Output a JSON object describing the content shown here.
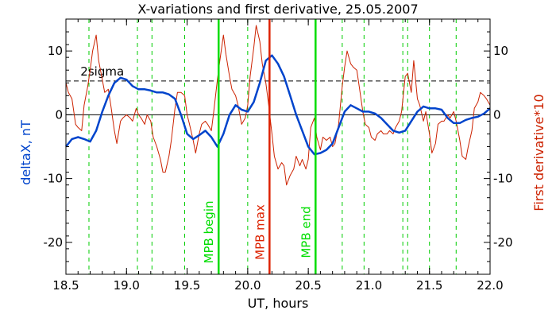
{
  "chart_data": {
    "type": "line",
    "title": "X-variations and first derivative, 25.05.2007",
    "xlabel": "UT, hours",
    "ylabel_left": "deltaX, nT",
    "ylabel_right": "First derivative*10",
    "xlim": [
      18.5,
      22.0
    ],
    "ylim": [
      -25,
      15
    ],
    "xticks": [
      18.5,
      19.0,
      19.5,
      20.0,
      20.5,
      21.0,
      21.5,
      22.0
    ],
    "xtick_labels": [
      "18.5",
      "19.0",
      "19.5",
      "20.0",
      "20.5",
      "21.0",
      "21.5",
      "22.0"
    ],
    "yticks": [
      -20,
      -10,
      0,
      10
    ],
    "ytick_labels": [
      "-20",
      "-10",
      "0",
      "10"
    ],
    "threshold": {
      "label": "2sigma",
      "value": 5.3
    },
    "zero_line": 0,
    "dashed_markers_x": [
      18.69,
      19.09,
      19.21,
      19.48,
      20.0,
      20.78,
      20.96,
      21.28,
      21.32,
      21.5,
      21.72
    ],
    "events": [
      {
        "label": "MPB begin",
        "x": 19.76,
        "color": "#00dd00"
      },
      {
        "label": "MPB max",
        "x": 20.18,
        "color": "#dd2200"
      },
      {
        "label": "MPB end",
        "x": 20.56,
        "color": "#00dd00"
      }
    ],
    "colors": {
      "deltaX": "#0044cc",
      "derivative": "#cc2200",
      "marker": "#00cc00"
    },
    "series": [
      {
        "name": "deltaX, nT",
        "x": [
          18.5,
          18.55,
          18.6,
          18.65,
          18.7,
          18.75,
          18.8,
          18.85,
          18.9,
          18.95,
          19.0,
          19.05,
          19.1,
          19.15,
          19.2,
          19.25,
          19.3,
          19.35,
          19.4,
          19.45,
          19.5,
          19.55,
          19.6,
          19.65,
          19.7,
          19.75,
          19.8,
          19.85,
          19.9,
          19.95,
          20.0,
          20.05,
          20.1,
          20.15,
          20.2,
          20.25,
          20.3,
          20.35,
          20.4,
          20.45,
          20.5,
          20.55,
          20.6,
          20.65,
          20.7,
          20.75,
          20.8,
          20.85,
          20.9,
          20.95,
          21.0,
          21.05,
          21.1,
          21.15,
          21.2,
          21.25,
          21.3,
          21.35,
          21.4,
          21.45,
          21.5,
          21.55,
          21.6,
          21.65,
          21.7,
          21.75,
          21.8,
          21.85,
          21.9,
          21.95,
          22.0
        ],
        "y": [
          -5,
          -3.8,
          -3.5,
          -3.8,
          -4.2,
          -2.5,
          0.5,
          3,
          5,
          5.8,
          5.5,
          4.5,
          4,
          4,
          3.8,
          3.5,
          3.5,
          3.2,
          2.5,
          0,
          -3,
          -3.8,
          -3.2,
          -2.5,
          -3.5,
          -5,
          -3,
          0,
          1.5,
          0.8,
          0.5,
          2,
          5,
          8.5,
          9.3,
          8,
          6,
          3,
          0,
          -2.5,
          -5,
          -6.2,
          -6,
          -5.5,
          -4.5,
          -2,
          0.5,
          1.5,
          1,
          0.5,
          0.5,
          0.2,
          -0.5,
          -1.5,
          -2.5,
          -2.8,
          -2.5,
          -1,
          0.5,
          1.3,
          1,
          1,
          0.8,
          -0.5,
          -1.3,
          -1.3,
          -0.8,
          -0.5,
          -0.3,
          0.2,
          1
        ]
      },
      {
        "name": "First derivative*10",
        "x": [
          18.5,
          18.52,
          18.55,
          18.58,
          18.6,
          18.63,
          18.65,
          18.68,
          18.7,
          18.72,
          18.75,
          18.77,
          18.8,
          18.82,
          18.85,
          18.87,
          18.9,
          18.92,
          18.95,
          18.97,
          19.0,
          19.03,
          19.05,
          19.08,
          19.1,
          19.12,
          19.15,
          19.17,
          19.2,
          19.22,
          19.25,
          19.28,
          19.3,
          19.32,
          19.35,
          19.37,
          19.4,
          19.42,
          19.45,
          19.48,
          19.5,
          19.52,
          19.55,
          19.57,
          19.6,
          19.62,
          19.65,
          19.67,
          19.7,
          19.72,
          19.75,
          19.77,
          19.8,
          19.82,
          19.85,
          19.87,
          19.9,
          19.92,
          19.95,
          19.98,
          20.0,
          20.02,
          20.05,
          20.07,
          20.1,
          20.12,
          20.15,
          20.17,
          20.2,
          20.22,
          20.25,
          20.28,
          20.3,
          20.32,
          20.35,
          20.38,
          20.4,
          20.43,
          20.45,
          20.48,
          20.5,
          20.52,
          20.55,
          20.57,
          20.6,
          20.62,
          20.65,
          20.68,
          20.7,
          20.72,
          20.75,
          20.78,
          20.8,
          20.82,
          20.85,
          20.87,
          20.9,
          20.92,
          20.95,
          20.97,
          21.0,
          21.02,
          21.05,
          21.07,
          21.1,
          21.12,
          21.15,
          21.17,
          21.2,
          21.22,
          21.25,
          21.27,
          21.3,
          21.32,
          21.35,
          21.37,
          21.4,
          21.42,
          21.45,
          21.47,
          21.5,
          21.52,
          21.55,
          21.57,
          21.6,
          21.62,
          21.65,
          21.67,
          21.7,
          21.72,
          21.75,
          21.77,
          21.8,
          21.82,
          21.85,
          21.87,
          21.9,
          21.92,
          21.95,
          21.97,
          22.0
        ],
        "y": [
          5,
          3.5,
          2.5,
          -1.5,
          -2,
          -2.5,
          1.5,
          4.5,
          7,
          10,
          12.5,
          8.5,
          5.5,
          3.5,
          4,
          1.5,
          -2.5,
          -4.5,
          -1,
          -0.5,
          0,
          -0.5,
          -1,
          1,
          0,
          -0.5,
          -1.5,
          0,
          -1,
          -3.5,
          -5,
          -7,
          -9,
          -9,
          -6.5,
          -4,
          1,
          3.5,
          3.5,
          3,
          0,
          -1.5,
          -4,
          -6,
          -3,
          -1.5,
          -1,
          -1.5,
          -2.5,
          0.5,
          5.5,
          8.5,
          12.5,
          9.5,
          6,
          4,
          3,
          1.5,
          -1.5,
          -0.5,
          1.5,
          6,
          10.5,
          14,
          11.5,
          8,
          5,
          2,
          -3,
          -6.5,
          -8.5,
          -7.5,
          -8,
          -11,
          -9.5,
          -8.5,
          -6.5,
          -8,
          -7,
          -8.5,
          -7,
          -2,
          -0.5,
          -3.5,
          -5.5,
          -3.5,
          -4,
          -3.5,
          -5,
          -4.5,
          -1.5,
          4.5,
          7.5,
          10,
          8,
          7.5,
          7,
          4.5,
          0.5,
          -1.5,
          -2,
          -3.5,
          -4,
          -3,
          -2.5,
          -3,
          -3,
          -2.5,
          -3,
          -2,
          -1,
          0.5,
          6,
          6.5,
          3.5,
          8.5,
          2.5,
          1.5,
          -1,
          0.5,
          -3,
          -6,
          -4.5,
          -1.5,
          -1,
          -1,
          0,
          -0.5,
          0.5,
          -1,
          -4,
          -6.5,
          -7,
          -5,
          -2.5,
          1,
          2,
          3.5,
          3,
          2.5,
          1.5
        ]
      }
    ]
  }
}
